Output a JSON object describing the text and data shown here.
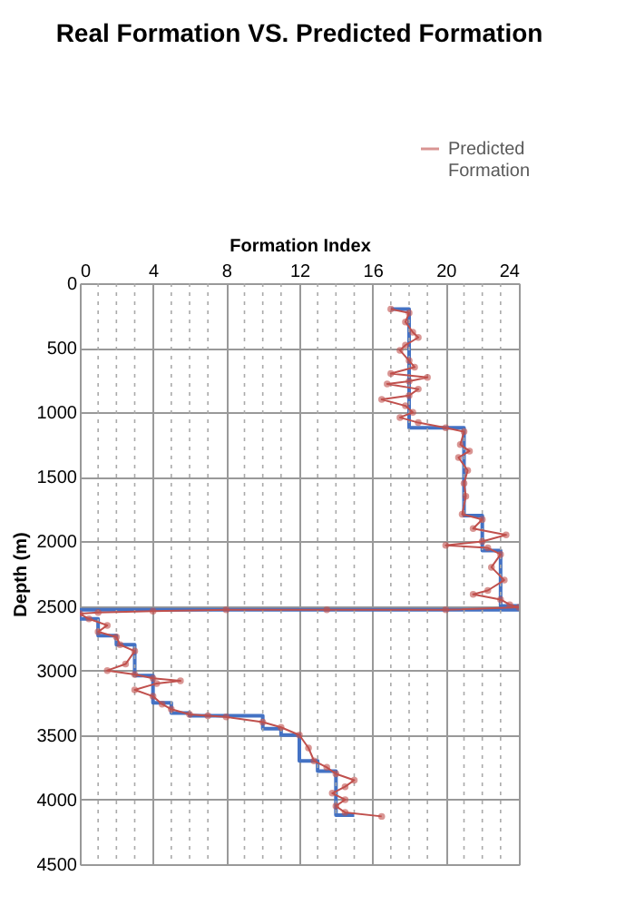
{
  "chart_data": {
    "type": "line",
    "title": "Real Formation VS. Predicted Formation",
    "xlabel": "Formation Index",
    "ylabel": "Depth (m)",
    "xlim": [
      0,
      24
    ],
    "ylim": [
      4500,
      0
    ],
    "xticks": [
      0,
      {
        "value": 1,
        "label": null
      },
      {
        "value": 2,
        "label": null
      },
      {
        "value": 3,
        "label": null
      },
      4,
      {
        "value": 5,
        "label": null
      },
      {
        "value": 6,
        "label": null
      },
      {
        "value": 7,
        "label": null
      },
      8,
      {
        "value": 9,
        "label": null
      },
      {
        "value": 10,
        "label": null
      },
      {
        "value": 11,
        "label": null
      },
      12,
      {
        "value": 13,
        "label": null
      },
      {
        "value": 14,
        "label": null
      },
      {
        "value": 15,
        "label": null
      },
      16,
      {
        "value": 17,
        "label": null
      },
      {
        "value": 18,
        "label": null
      },
      {
        "value": 19,
        "label": null
      },
      20,
      {
        "value": 21,
        "label": null
      },
      {
        "value": 22,
        "label": null
      },
      {
        "value": 23,
        "label": null
      },
      24
    ],
    "yticks": [
      0,
      500,
      1000,
      1500,
      2000,
      2500,
      3000,
      3500,
      4000,
      4500
    ],
    "grid": true,
    "legend": "top right",
    "series": [
      {
        "color": "#4472c4",
        "marker": "none",
        "x": [
          17,
          18,
          18,
          21,
          21,
          22,
          22,
          23,
          23,
          24,
          24,
          0,
          0,
          1,
          1,
          2,
          2,
          3,
          3,
          4,
          4,
          5,
          5,
          6,
          6,
          10,
          10,
          11,
          11,
          12,
          12,
          13,
          13,
          14,
          14,
          15
        ],
        "values": [
          200,
          200,
          1120,
          1120,
          1800,
          1800,
          2070,
          2070,
          2500,
          2500,
          2530,
          2530,
          2600,
          2600,
          2730,
          2730,
          2800,
          2800,
          3040,
          3040,
          3250,
          3250,
          3330,
          3330,
          3350,
          3350,
          3450,
          3450,
          3500,
          3500,
          3700,
          3700,
          3780,
          3780,
          4120,
          4120
        ]
      },
      {
        "name": "Predicted Formation",
        "color": "#c0504d",
        "marker": "circle",
        "x": [
          17,
          18,
          17.8,
          18.2,
          18.5,
          17.8,
          17.5,
          18,
          18.3,
          17,
          19,
          18,
          16.8,
          18.5,
          18,
          16.5,
          17.8,
          18.2,
          17.5,
          18.5,
          20,
          21,
          20.8,
          21.3,
          20.7,
          21.2,
          21,
          21.1,
          20.9,
          22,
          21.5,
          23.3,
          22,
          20,
          22.3,
          23,
          22.5,
          23.2,
          22.3,
          21.5,
          23,
          23.5,
          24,
          20,
          13.5,
          8,
          4,
          1,
          0,
          0.5,
          1.5,
          1,
          2,
          2.2,
          3,
          2.5,
          1.5,
          3,
          4,
          5.5,
          4.2,
          3,
          4,
          4.5,
          5,
          6,
          7,
          8,
          10,
          11,
          12,
          12.5,
          12.8,
          13.5,
          14,
          15,
          14.5,
          13.8,
          14.5,
          14,
          14.5,
          16.5
        ],
        "values": [
          200,
          230,
          300,
          380,
          420,
          480,
          520,
          600,
          650,
          700,
          730,
          760,
          780,
          820,
          870,
          900,
          950,
          1000,
          1040,
          1080,
          1120,
          1150,
          1250,
          1300,
          1350,
          1450,
          1550,
          1650,
          1790,
          1830,
          1900,
          1950,
          2000,
          2030,
          2050,
          2100,
          2200,
          2300,
          2380,
          2410,
          2450,
          2490,
          2510,
          2530,
          2530,
          2530,
          2540,
          2550,
          2560,
          2600,
          2650,
          2700,
          2740,
          2800,
          2850,
          2950,
          3000,
          3030,
          3060,
          3080,
          3100,
          3150,
          3200,
          3260,
          3300,
          3340,
          3350,
          3360,
          3400,
          3440,
          3500,
          3600,
          3700,
          3750,
          3800,
          3850,
          3900,
          3950,
          4000,
          4050,
          4100,
          4130
        ]
      }
    ]
  }
}
